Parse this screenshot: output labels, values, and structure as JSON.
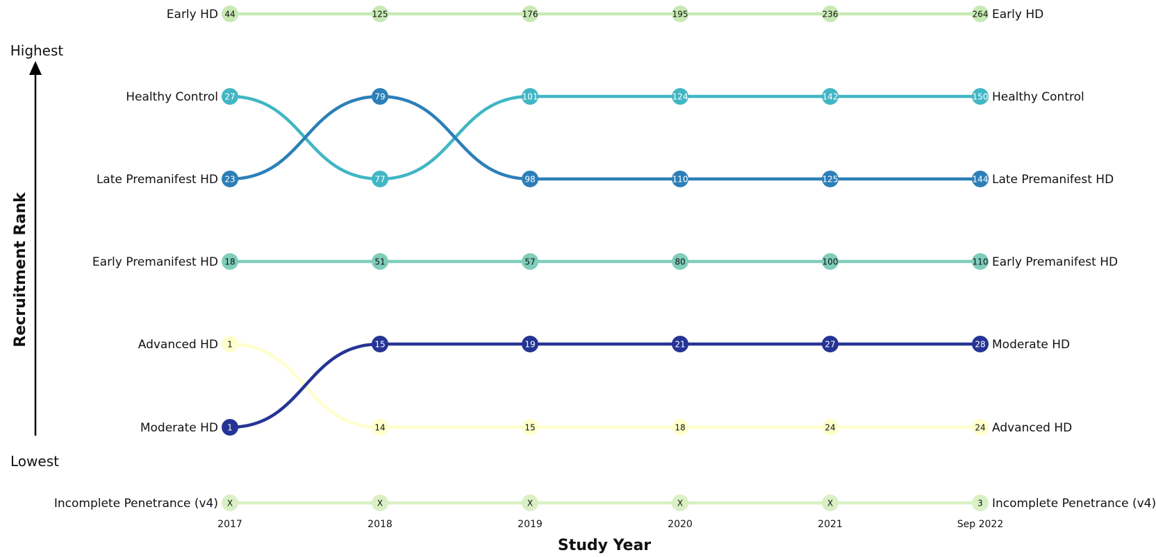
{
  "chart_data": {
    "type": "bump",
    "xlabel": "Study Year",
    "ylabel": "Recruitment Rank",
    "rank_top_label": "Highest",
    "rank_bottom_label": "Lowest",
    "x": [
      "2017",
      "2018",
      "2019",
      "2020",
      "2021",
      "Sep 2022"
    ],
    "series": [
      {
        "name": "Early HD",
        "color": "#c7e9b4",
        "text_color": "#111111",
        "values": [
          "44",
          "125",
          "176",
          "195",
          "236",
          "264"
        ],
        "rank": [
          1,
          1,
          1,
          1,
          1,
          1
        ]
      },
      {
        "name": "Healthy Control",
        "color": "#41b6c4",
        "text_color": "#ffffff",
        "values": [
          "27",
          "77",
          "101",
          "124",
          "142",
          "150"
        ],
        "rank": [
          2,
          3,
          2,
          2,
          2,
          2
        ]
      },
      {
        "name": "Late Premanifest HD",
        "color": "#2c7fb8",
        "text_color": "#ffffff",
        "values": [
          "23",
          "79",
          "98",
          "110",
          "125",
          "144"
        ],
        "rank": [
          3,
          2,
          3,
          3,
          3,
          3
        ]
      },
      {
        "name": "Early Premanifest HD",
        "color": "#7fcdbb",
        "text_color": "#111111",
        "values": [
          "18",
          "51",
          "57",
          "80",
          "100",
          "110"
        ],
        "rank": [
          4,
          4,
          4,
          4,
          4,
          4
        ]
      },
      {
        "name": "Advanced HD",
        "color": "#ffffcc",
        "text_color": "#111111",
        "values": [
          "1",
          "14",
          "15",
          "18",
          "24",
          "24"
        ],
        "rank": [
          5,
          6,
          6,
          6,
          6,
          6
        ]
      },
      {
        "name": "Moderate HD",
        "color": "#253494",
        "text_color": "#ffffff",
        "values": [
          "1",
          "15",
          "19",
          "21",
          "27",
          "28"
        ],
        "rank": [
          6,
          5,
          5,
          5,
          5,
          5
        ]
      },
      {
        "name": "Incomplete Penetrance (v4)",
        "color": "#d9f0c4",
        "text_color": "#111111",
        "values": [
          "X",
          "X",
          "X",
          "X",
          "X",
          "3"
        ],
        "rank": [
          7,
          7,
          7,
          7,
          7,
          7
        ]
      }
    ]
  }
}
